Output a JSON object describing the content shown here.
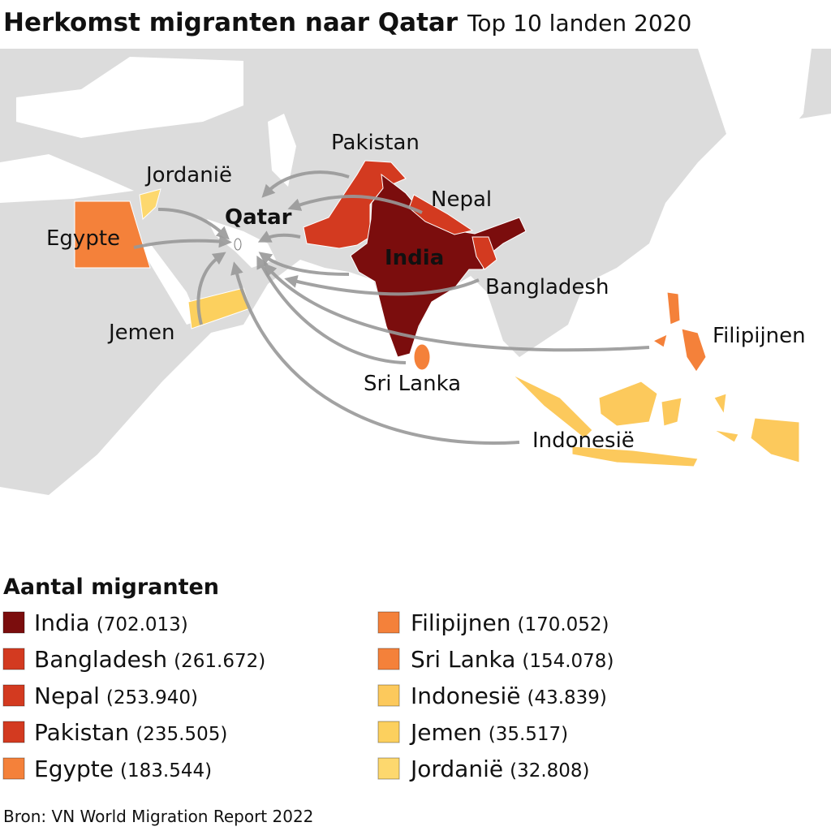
{
  "header": {
    "title": "Herkomst migranten naar Qatar",
    "subtitle": "Top 10 landen 2020"
  },
  "map_labels": {
    "qatar": "Qatar",
    "india": "India",
    "pakistan": "Pakistan",
    "nepal": "Nepal",
    "bangladesh": "Bangladesh",
    "jordanie": "Jordanië",
    "egypte": "Egypte",
    "jemen": "Jemen",
    "sri_lanka": "Sri Lanka",
    "filipijnen": "Filipijnen",
    "indonesie": "Indonesië"
  },
  "legend": {
    "title": "Aantal migranten",
    "items": [
      {
        "name": "India",
        "count": "(702.013)",
        "color": "#7b0d0d"
      },
      {
        "name": "Bangladesh",
        "count": "(261.672)",
        "color": "#d33a20"
      },
      {
        "name": "Nepal",
        "count": "(253.940)",
        "color": "#d33a20"
      },
      {
        "name": "Pakistan",
        "count": "(235.505)",
        "color": "#d33a20"
      },
      {
        "name": "Egypte",
        "count": "(183.544)",
        "color": "#f4813a"
      },
      {
        "name": "Filipijnen",
        "count": "(170.052)",
        "color": "#f4813a"
      },
      {
        "name": "Sri Lanka",
        "count": "(154.078)",
        "color": "#f4813a"
      },
      {
        "name": "Indonesië",
        "count": "(43.839)",
        "color": "#fcc95c"
      },
      {
        "name": "Jemen",
        "count": "(35.517)",
        "color": "#fcd05e"
      },
      {
        "name": "Jordanië",
        "count": "(32.808)",
        "color": "#fdd86e"
      }
    ]
  },
  "source": "Bron: VN World Migration Report 2022"
}
